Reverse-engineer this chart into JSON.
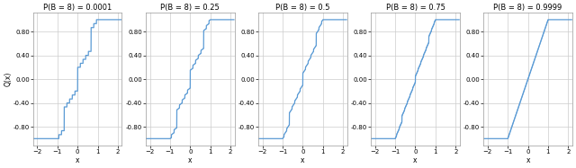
{
  "panels": [
    {
      "title": "P(B = 8) = 0.0001",
      "p8": 0.0001
    },
    {
      "title": "P(B = 8) = 0.25",
      "p8": 0.25
    },
    {
      "title": "P(B = 8) = 0.5",
      "p8": 0.5
    },
    {
      "title": "P(B = 8) = 0.75",
      "p8": 0.75
    },
    {
      "title": "P(B = 8) = 0.9999",
      "p8": 0.9999
    }
  ],
  "xlim": [
    -2.2,
    2.2
  ],
  "line_color": "#5b9bd5",
  "line_width": 0.9,
  "grid_color": "#cccccc",
  "grid_lw": 0.5,
  "bg_color": "#ffffff",
  "title_fontsize": 6.0,
  "tick_fontsize": 5.0,
  "label_fontsize": 5.5,
  "ylabel": "Q(x)",
  "xlabel": "x",
  "fig_width": 6.4,
  "fig_height": 1.87
}
